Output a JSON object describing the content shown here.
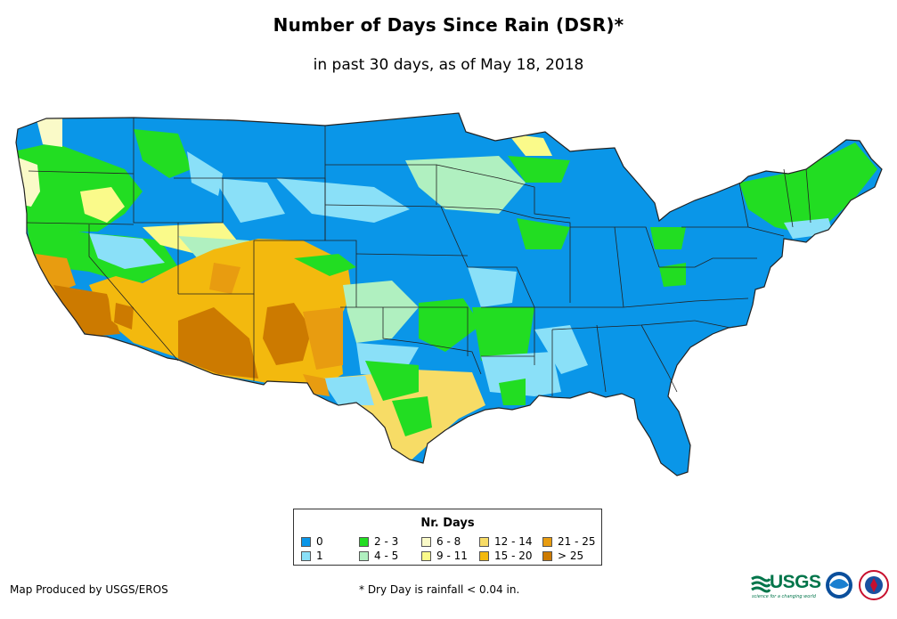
{
  "title": "Number of Days Since Rain (DSR)*",
  "subtitle": "in past 30 days, as of May 18, 2018",
  "legend": {
    "title": "Nr. Days",
    "items": [
      {
        "label": "0",
        "color": "#0a96e8"
      },
      {
        "label": "1",
        "color": "#8ae0f8"
      },
      {
        "label": "2 - 3",
        "color": "#22dd22"
      },
      {
        "label": "4 - 5",
        "color": "#b0f0c0"
      },
      {
        "label": "6 - 8",
        "color": "#fafac8"
      },
      {
        "label": "9 - 11",
        "color": "#fafa8a"
      },
      {
        "label": "12 - 14",
        "color": "#f7dc66"
      },
      {
        "label": "15 - 20",
        "color": "#f3b90e"
      },
      {
        "label": "21 - 25",
        "color": "#e89c10"
      },
      {
        "label": "> 25",
        "color": "#cc7a00"
      }
    ]
  },
  "footer": {
    "producer": "Map Produced by USGS/EROS",
    "note": "* Dry Day is rainfall < 0.04 in."
  },
  "logos": {
    "usgs": "USGS",
    "usgs_tagline": "science for a changing world"
  }
}
